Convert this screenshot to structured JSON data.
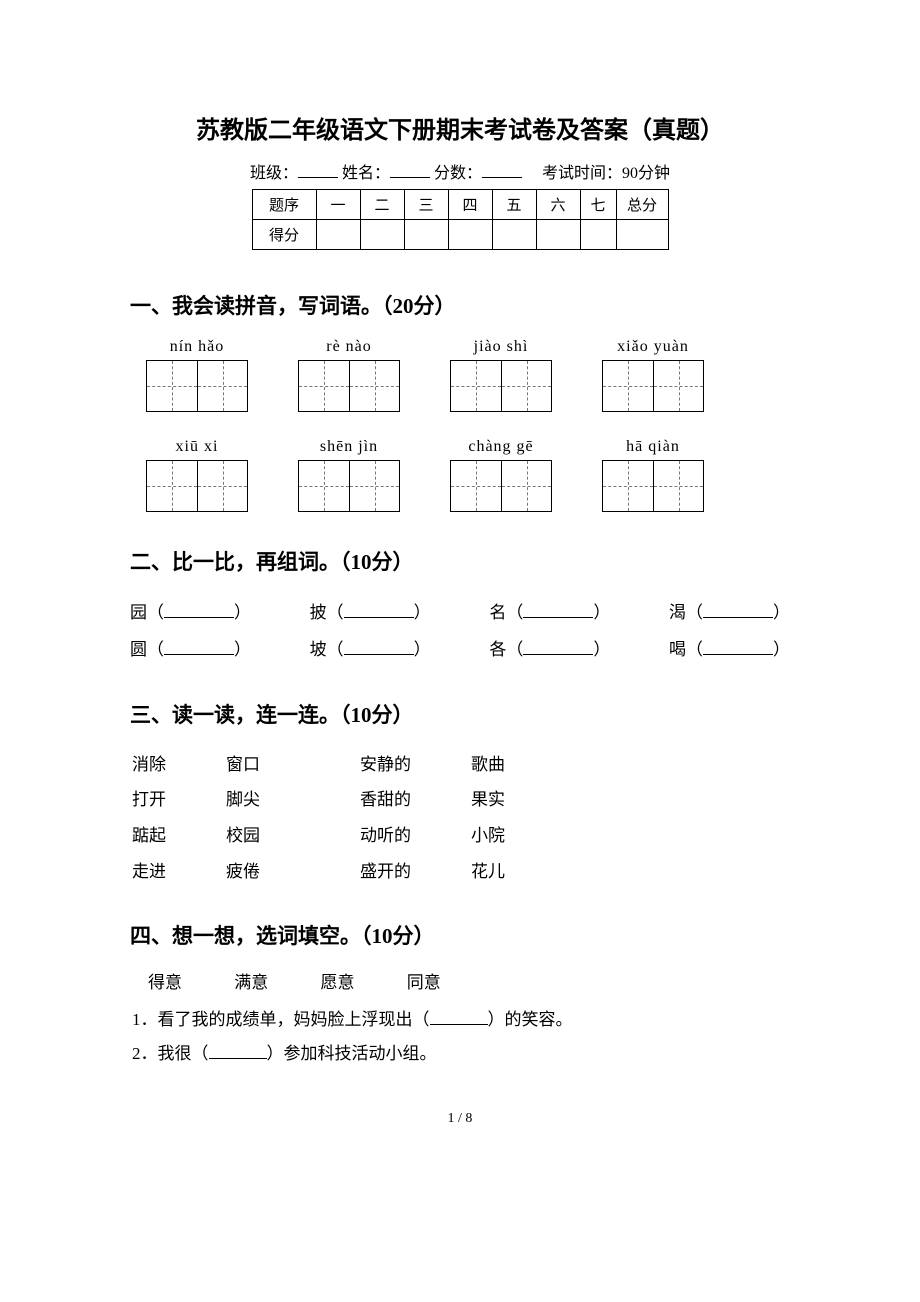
{
  "title": "苏教版二年级语文下册期末考试卷及答案（真题）",
  "meta": {
    "class_label": "班级：",
    "name_label": "姓名：",
    "score_label": "分数：",
    "time_label": "考试时间：90分钟"
  },
  "score_table": {
    "row1_label": "题序",
    "cols": [
      "一",
      "二",
      "三",
      "四",
      "五",
      "六",
      "七"
    ],
    "total": "总分",
    "row2_label": "得分"
  },
  "s1": {
    "heading": "一、我会读拼音，写词语。（20分）",
    "row1": [
      "nín  hǎo",
      "rè  nào",
      "jiào shì",
      "xiǎo  yuàn"
    ],
    "row2": [
      "xiū  xi",
      "shēn jìn",
      "chàng  gē",
      "hā  qiàn"
    ]
  },
  "s2": {
    "heading": "二、比一比，再组词。（10分）",
    "pairs": [
      [
        "园",
        "披",
        "名",
        "渴"
      ],
      [
        "圆",
        "坡",
        "各",
        "喝"
      ]
    ]
  },
  "s3": {
    "heading": "三、读一读，连一连。（10分）",
    "left_a": [
      "消除",
      "打开",
      "踮起",
      "走进"
    ],
    "left_b": [
      "窗口",
      "脚尖",
      "校园",
      "疲倦"
    ],
    "right_a": [
      "安静的",
      "香甜的",
      "动听的",
      "盛开的"
    ],
    "right_b": [
      "歌曲",
      "果实",
      "小院",
      "花儿"
    ]
  },
  "s4": {
    "heading": "四、想一想，选词填空。（10分）",
    "words": [
      "得意",
      "满意",
      "愿意",
      "同意"
    ],
    "lines": [
      "1．看了我的成绩单，妈妈脸上浮现出（",
      "）的笑容。",
      "2．我很（",
      "）参加科技活动小组。"
    ]
  },
  "page_num": "1 / 8"
}
